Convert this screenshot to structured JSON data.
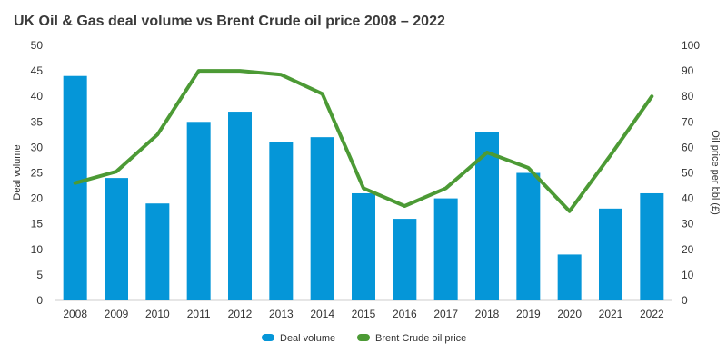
{
  "chart_data": {
    "type": "bar+line",
    "title": "UK Oil & Gas deal volume vs Brent Crude oil price 2008 – 2022",
    "categories": [
      "2008",
      "2009",
      "2010",
      "2011",
      "2012",
      "2013",
      "2014",
      "2015",
      "2016",
      "2017",
      "2018",
      "2019",
      "2020",
      "2021",
      "2022"
    ],
    "series": [
      {
        "name": "Deal volume",
        "type": "bar",
        "axis": "left",
        "color": "#0596d8",
        "values": [
          44,
          24,
          19,
          35,
          37,
          31,
          32,
          21,
          16,
          20,
          33,
          25,
          9,
          18,
          21
        ]
      },
      {
        "name": "Brent Crude oil price",
        "type": "line",
        "axis": "right",
        "color": "#4c9a35",
        "values": [
          46,
          50.5,
          65,
          90,
          90,
          88.5,
          81,
          44,
          37,
          44,
          58,
          52,
          35,
          57,
          80
        ]
      }
    ],
    "ylabel_left": "Deal volume",
    "ylabel_right": "Oil price per bbl (£)",
    "ylim_left": [
      0,
      50
    ],
    "ylim_right": [
      0,
      100
    ],
    "yticks_left": [
      "0",
      "5",
      "10",
      "15",
      "20",
      "25",
      "30",
      "35",
      "40",
      "45",
      "50"
    ],
    "yticks_right": [
      "0",
      "10",
      "20",
      "30",
      "40",
      "50",
      "60",
      "70",
      "80",
      "90",
      "100"
    ],
    "grid": false,
    "legend_position": "bottom-center"
  }
}
